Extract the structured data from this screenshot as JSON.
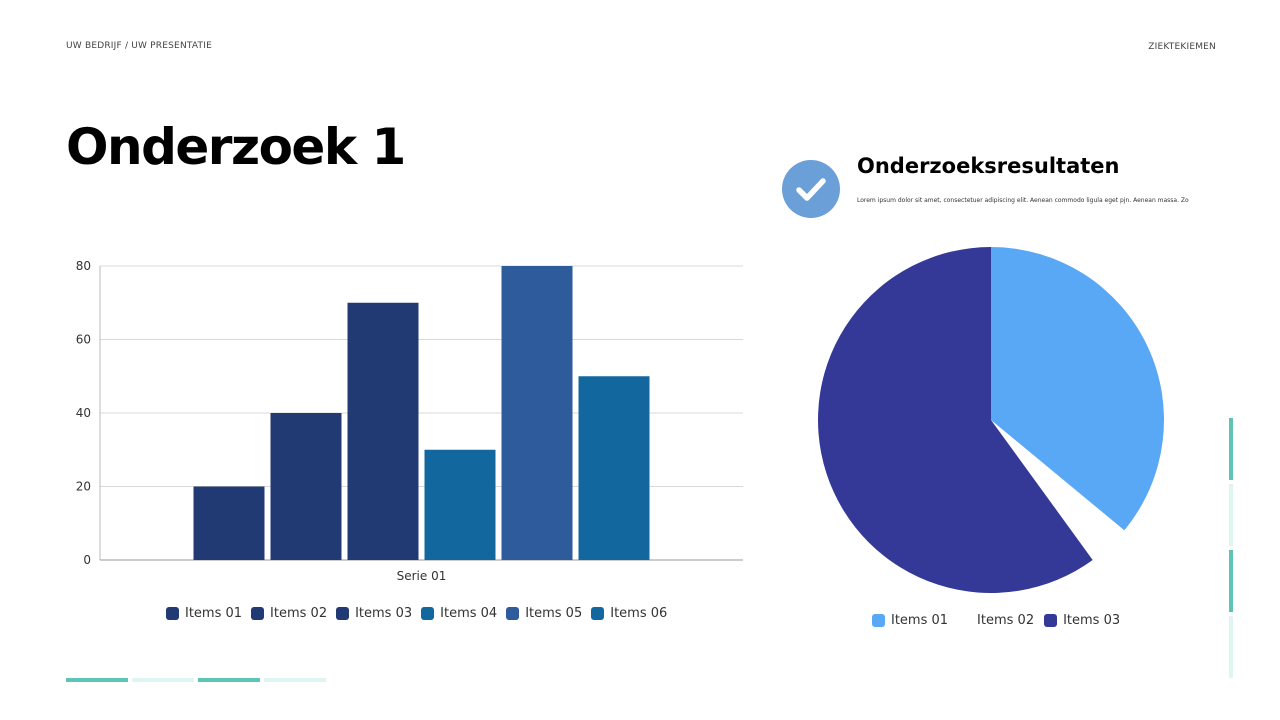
{
  "header": {
    "left": "UW BEDRIJF / UW PRESENTATIE",
    "right": "ZIEKTEKIEMEN"
  },
  "title": "Onderzoek 1",
  "results": {
    "icon": "check-icon",
    "title": "Onderzoeksresultaten",
    "body": "Lorem ipsum dolor sit amet, consectetuer adipiscing elit. Aenean commodo ligula eget pjn. Aenean massa. Zo"
  },
  "colors": {
    "accent_teal": "#5ec4b6",
    "accent_teal_light": "#dff5f1",
    "icon_blue": "#6b9fd8"
  },
  "chart_data": [
    {
      "type": "bar",
      "categories": [
        "Serie 01"
      ],
      "series": [
        {
          "name": "Items 01",
          "values": [
            20
          ],
          "color": "#213a73"
        },
        {
          "name": "Items 02",
          "values": [
            40
          ],
          "color": "#213a73"
        },
        {
          "name": "Items 03",
          "values": [
            70
          ],
          "color": "#213a73"
        },
        {
          "name": "Items 04",
          "values": [
            30
          ],
          "color": "#13679f"
        },
        {
          "name": "Items 05",
          "values": [
            80
          ],
          "color": "#2e5b9c"
        },
        {
          "name": "Items 06",
          "values": [
            50
          ],
          "color": "#13679f"
        }
      ],
      "ylim": [
        0,
        80
      ],
      "yticks": [
        0,
        20,
        40,
        60,
        80
      ],
      "grid": true,
      "legend": "bottom"
    },
    {
      "type": "pie",
      "slices": [
        {
          "name": "Items 01",
          "value": 36,
          "color": "#59a8f5"
        },
        {
          "name": "Items 02",
          "value": 4,
          "color": ""
        },
        {
          "name": "Items 03",
          "value": 60,
          "color": "#343896"
        }
      ],
      "legend": "bottom"
    }
  ]
}
